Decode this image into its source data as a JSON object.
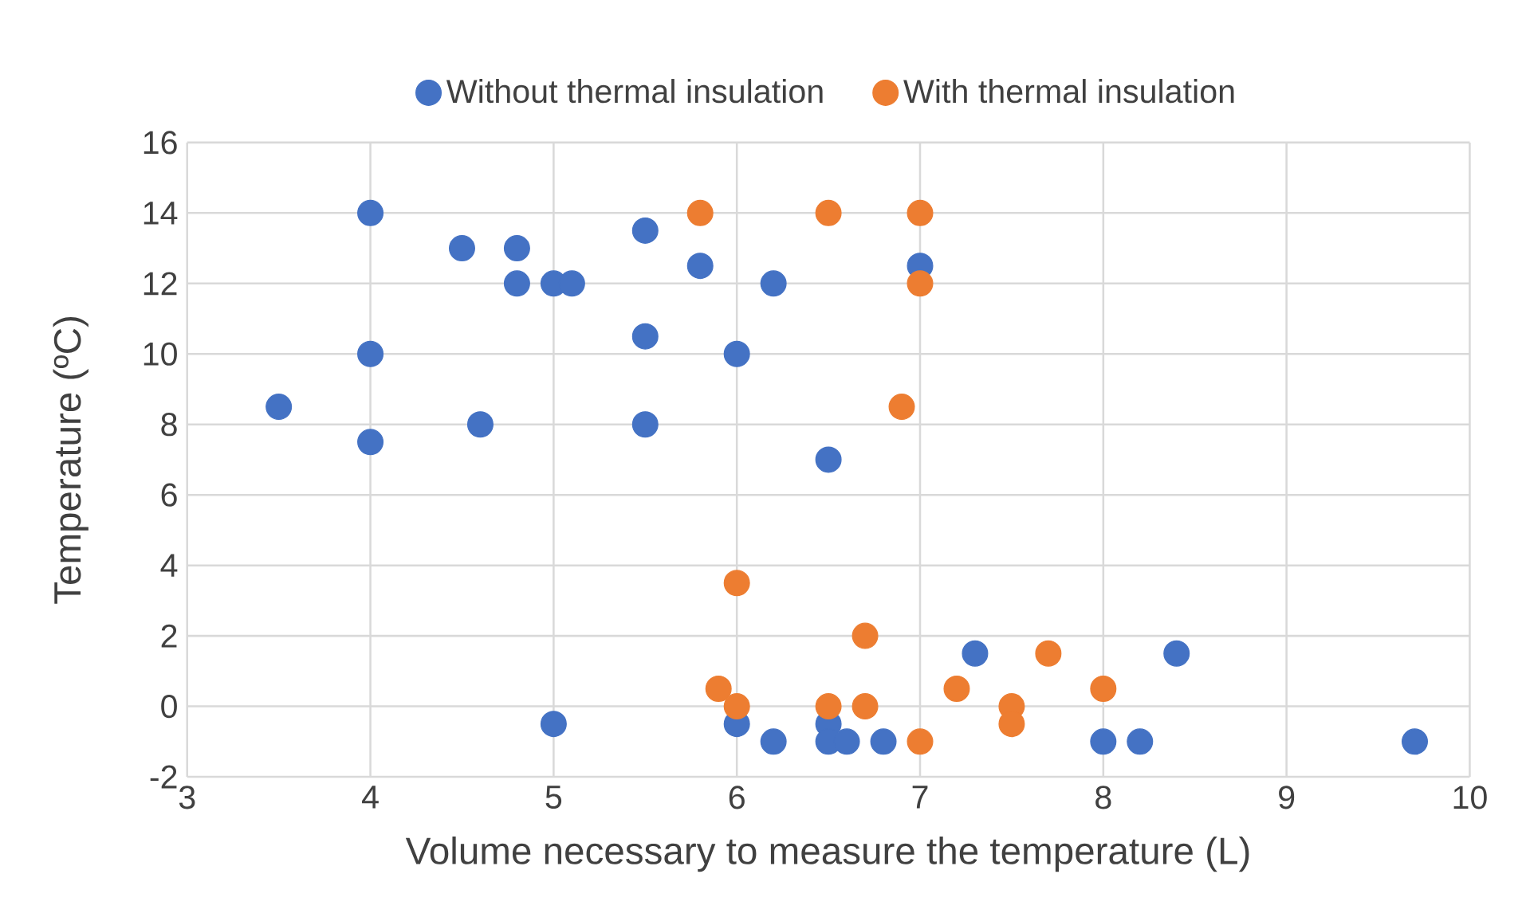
{
  "chart_data": {
    "type": "scatter",
    "xlabel": "Volume necessary to measure the temperature (L)",
    "ylabel": "Temperature (ºC)",
    "xlim": [
      3,
      10
    ],
    "ylim": [
      -2,
      16
    ],
    "xticks": [
      3,
      4,
      5,
      6,
      7,
      8,
      9,
      10
    ],
    "yticks": [
      -2,
      0,
      2,
      4,
      6,
      8,
      10,
      12,
      14,
      16
    ],
    "grid": true,
    "legend": "top",
    "marker": "circle",
    "series": [
      {
        "name": "Without thermal insulation",
        "color": "#4472c4",
        "x": [
          3.5,
          4,
          4,
          4,
          4.5,
          4.8,
          4.8,
          5,
          5.1,
          5.5,
          5.5,
          5.5,
          4.6,
          5,
          5.8,
          6.2,
          6,
          6.5,
          7,
          6,
          6.2,
          6.5,
          6.5,
          6.6,
          6.8,
          7.3,
          8.4,
          8,
          8.2,
          9.7
        ],
        "values": [
          8.5,
          14,
          10,
          7.5,
          13,
          13,
          12,
          12,
          12,
          13.5,
          10.5,
          8,
          8,
          -0.5,
          12.5,
          12,
          10,
          7,
          12.5,
          -0.5,
          -1,
          -0.5,
          -1,
          -1,
          -1,
          1.5,
          1.5,
          -1,
          -1,
          -1
        ]
      },
      {
        "name": "With thermal insulation",
        "color": "#ed7d31",
        "x": [
          5.8,
          6.5,
          7,
          7,
          6.9,
          6,
          6.7,
          5.9,
          6,
          6.5,
          6.7,
          7,
          7.2,
          7.7,
          7.5,
          7.5,
          8
        ],
        "values": [
          14,
          14,
          14,
          12,
          8.5,
          3.5,
          2,
          0.5,
          0,
          0,
          0,
          -1,
          0.5,
          1.5,
          0,
          -0.5,
          0.5
        ]
      }
    ]
  }
}
